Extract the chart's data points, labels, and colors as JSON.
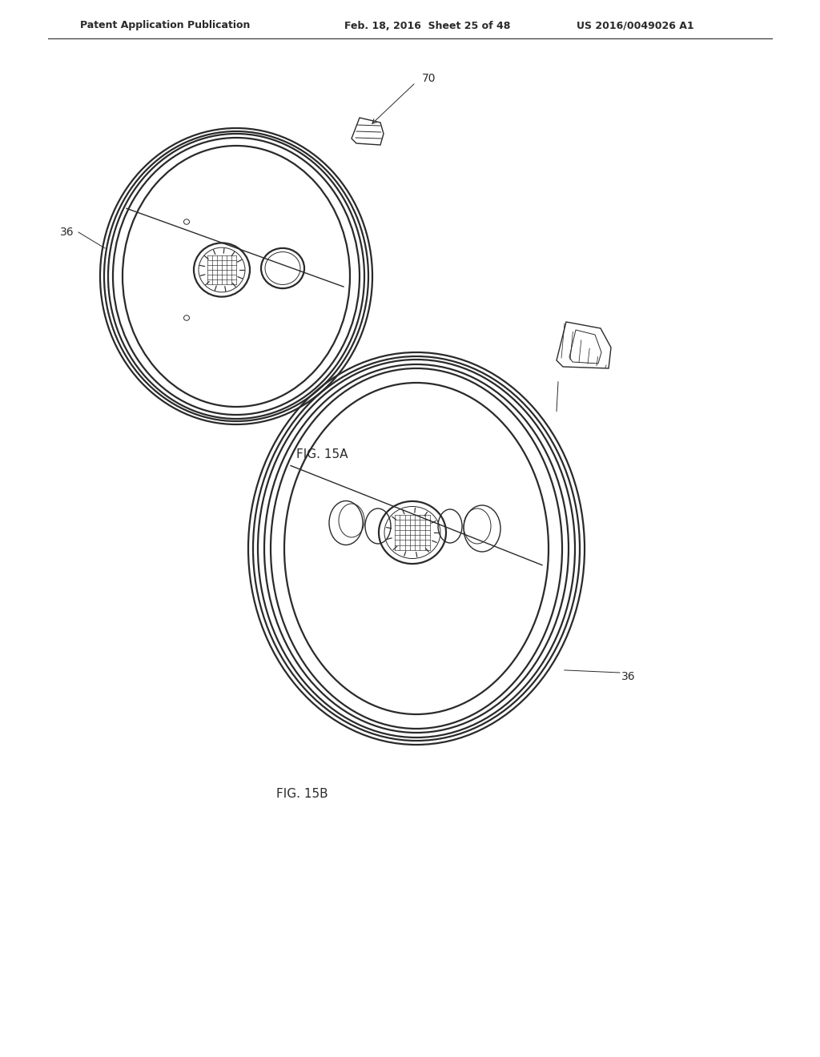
{
  "bg_color": "#ffffff",
  "line_color": "#2a2a2a",
  "header_left": "Patent Application Publication",
  "header_mid": "Feb. 18, 2016  Sheet 25 of 48",
  "header_right": "US 2016/0049026 A1",
  "fig_label_15a": "FIG. 15A",
  "fig_label_15b": "FIG. 15B",
  "label_36a": "36",
  "label_70": "70",
  "label_36b": "36"
}
